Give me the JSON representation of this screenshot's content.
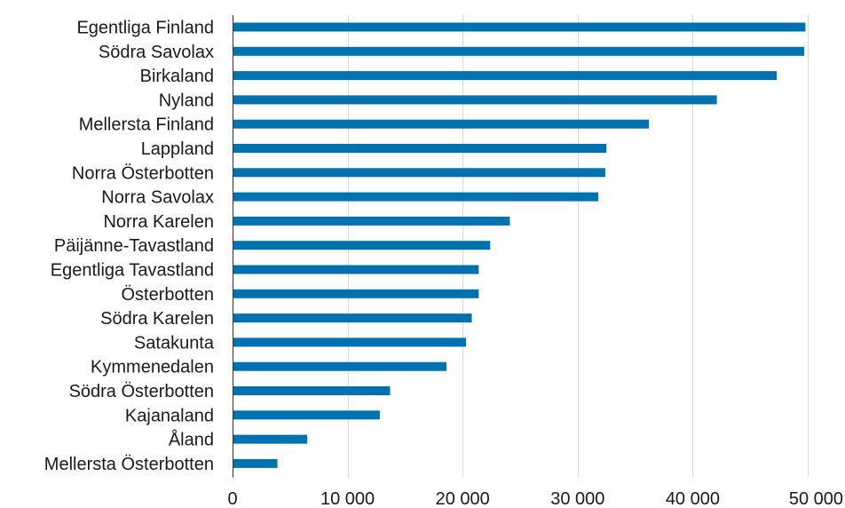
{
  "chart_data": {
    "type": "bar",
    "orientation": "horizontal",
    "title": "",
    "xlabel": "",
    "ylabel": "",
    "categories": [
      "Egentliga Finland",
      "Södra Savolax",
      "Birkaland",
      "Nyland",
      "Mellersta Finland",
      "Lappland",
      "Norra Österbotten",
      "Norra Savolax",
      "Norra Karelen",
      "Päijänne-Tavastland",
      "Egentliga Tavastland",
      "Österbotten",
      "Södra Karelen",
      "Satakunta",
      "Kymmenedalen",
      "Södra Österbotten",
      "Kajanaland",
      "Åland",
      "Mellersta Österbotten"
    ],
    "values": [
      49800,
      49700,
      47300,
      42100,
      36200,
      32500,
      32400,
      31800,
      24100,
      22400,
      21400,
      21400,
      20800,
      20300,
      18600,
      13700,
      12800,
      6500,
      3900
    ],
    "xlim": [
      0,
      50000
    ],
    "xticks": [
      0,
      10000,
      20000,
      30000,
      40000,
      50000
    ],
    "xtick_labels": [
      "0",
      "10 000",
      "20 000",
      "30 000",
      "40 000",
      "50 000"
    ],
    "grid": "vertical",
    "legend": "none",
    "colors": {
      "bar": "#0072b2",
      "grid": "#d9d9d9",
      "axis": "#333333",
      "text": "#1a1a1a"
    }
  }
}
